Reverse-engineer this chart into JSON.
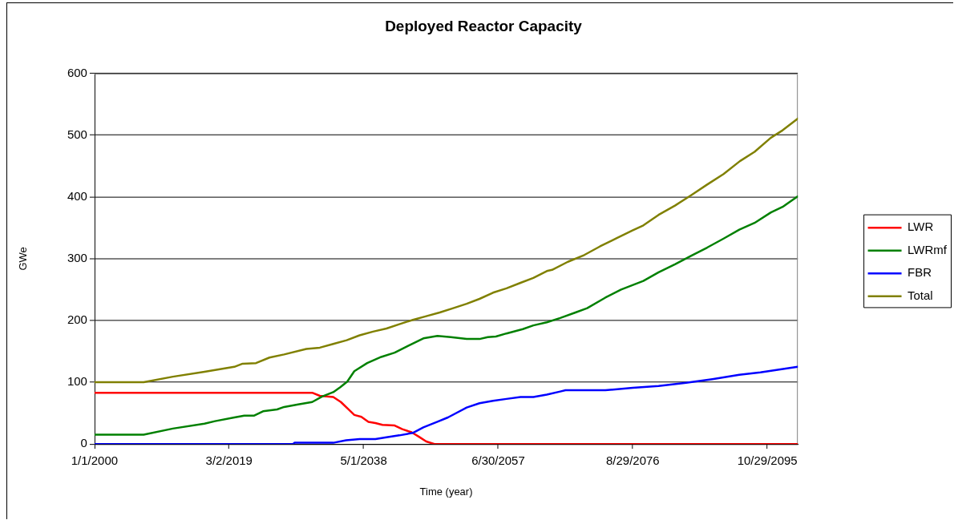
{
  "chart_data": {
    "type": "line",
    "title": "Deployed Reactor Capacity",
    "xlabel": "Time (year)",
    "ylabel": "GWe",
    "xlim": [
      "2000-01-01",
      "2100-03-01"
    ],
    "xticks": [
      {
        "value": "2000-01-01",
        "label": "1/1/2000"
      },
      {
        "value": "2019-03-02",
        "label": "3/2/2019"
      },
      {
        "value": "2038-05-01",
        "label": "5/1/2038"
      },
      {
        "value": "2057-06-30",
        "label": "6/30/2057"
      },
      {
        "value": "2076-08-29",
        "label": "8/29/2076"
      },
      {
        "value": "2095-10-29",
        "label": "10/29/2095"
      }
    ],
    "ylim": [
      0,
      600
    ],
    "yticks": [
      0,
      100,
      200,
      300,
      400,
      500,
      600
    ],
    "grid": "y",
    "legend": "right",
    "marker": "none",
    "line_style": "solid",
    "series": [
      {
        "name": "LWR",
        "color": "#ff0000",
        "x": [
          "2000-01",
          "2031-01",
          "2032-02",
          "2034-01",
          "2035-02",
          "2037-01",
          "2038-01",
          "2039-01",
          "2040-01",
          "2041-01",
          "2042-10",
          "2043-11",
          "2045-03",
          "2046-03",
          "2047-04",
          "2048-06",
          "2100-03"
        ],
        "values": [
          83,
          83,
          78,
          76,
          68,
          47,
          44,
          36,
          34,
          31,
          30,
          24,
          19,
          12,
          4,
          0,
          0
        ]
      },
      {
        "name": "LWRmf",
        "color": "#008000",
        "x": [
          "2000-01",
          "2007-01",
          "2011-03",
          "2015-09",
          "2017-03",
          "2019-12",
          "2021-05",
          "2022-10",
          "2024-01",
          "2026-01",
          "2027-01",
          "2029-01",
          "2031-01",
          "2032-06",
          "2034-01",
          "2035-01",
          "2036-01",
          "2037-01",
          "2038-11",
          "2040-11",
          "2042-10",
          "2044-09",
          "2046-11",
          "2048-11",
          "2050-10",
          "2053-01",
          "2054-11",
          "2056-01",
          "2057-03",
          "2058-09",
          "2061-01",
          "2062-07",
          "2064-06",
          "2066-05",
          "2068-07",
          "2070-03",
          "2072-10",
          "2075-01",
          "2078-03",
          "2080-05",
          "2082-09",
          "2085-01",
          "2087-04",
          "2089-07",
          "2091-11",
          "2094-01",
          "2096-05",
          "2098-01",
          "2100-03"
        ],
        "values": [
          15,
          15,
          25,
          33,
          37,
          43,
          46,
          46,
          53,
          56,
          60,
          64,
          68,
          77,
          84,
          92,
          101,
          118,
          131,
          141,
          148,
          159,
          171,
          175,
          173,
          170,
          170,
          173,
          174,
          179,
          186,
          192,
          197,
          204,
          213,
          220,
          237,
          250,
          264,
          278,
          291,
          305,
          318,
          332,
          347,
          358,
          375,
          384,
          401
        ]
      },
      {
        "name": "FBR",
        "color": "#0000ff",
        "x": [
          "2000-01",
          "2028-04",
          "2028-07",
          "2034-01",
          "2035-11",
          "2037-10",
          "2040-01",
          "2041-08",
          "2043-06",
          "2045-05",
          "2046-11",
          "2048-11",
          "2050-05",
          "2053-01",
          "2054-11",
          "2056-10",
          "2058-09",
          "2060-09",
          "2062-07",
          "2064-06",
          "2066-05",
          "2067-02",
          "2072-10",
          "2076-09",
          "2080-05",
          "2084-04",
          "2088-01",
          "2091-11",
          "2094-11",
          "2100-03"
        ],
        "values": [
          0,
          0,
          2,
          2,
          6,
          8,
          8,
          11,
          14,
          18,
          27,
          36,
          43,
          59,
          66,
          70,
          73,
          76,
          76,
          80,
          85,
          87,
          87,
          91,
          94,
          99,
          105,
          112,
          116,
          125
        ]
      },
      {
        "name": "Total",
        "color": "#808000",
        "x": [
          "2000-01",
          "2007-01",
          "2011-03",
          "2015-09",
          "2019-12",
          "2021-02",
          "2023-01",
          "2024-12",
          "2027-01",
          "2030-03",
          "2032-02",
          "2034-01",
          "2035-12",
          "2037-10",
          "2039-09",
          "2041-08",
          "2043-06",
          "2045-05",
          "2047-04",
          "2049-03",
          "2051-02",
          "2053-01",
          "2054-11",
          "2056-10",
          "2058-09",
          "2060-09",
          "2062-07",
          "2064-06",
          "2065-03",
          "2067-06",
          "2069-10",
          "2072-01",
          "2074-05",
          "2076-09",
          "2078-03",
          "2080-05",
          "2082-09",
          "2085-01",
          "2087-04",
          "2089-08",
          "2091-12",
          "2094-01",
          "2096-05",
          "2098-01",
          "2100-03"
        ],
        "values": [
          100,
          100,
          109,
          117,
          125,
          130,
          131,
          140,
          145,
          154,
          156,
          162,
          168,
          176,
          182,
          187,
          194,
          201,
          207,
          213,
          220,
          227,
          235,
          245,
          252,
          261,
          269,
          280,
          282,
          295,
          306,
          320,
          333,
          346,
          354,
          371,
          386,
          403,
          420,
          437,
          458,
          473,
          496,
          508,
          527
        ]
      }
    ]
  }
}
